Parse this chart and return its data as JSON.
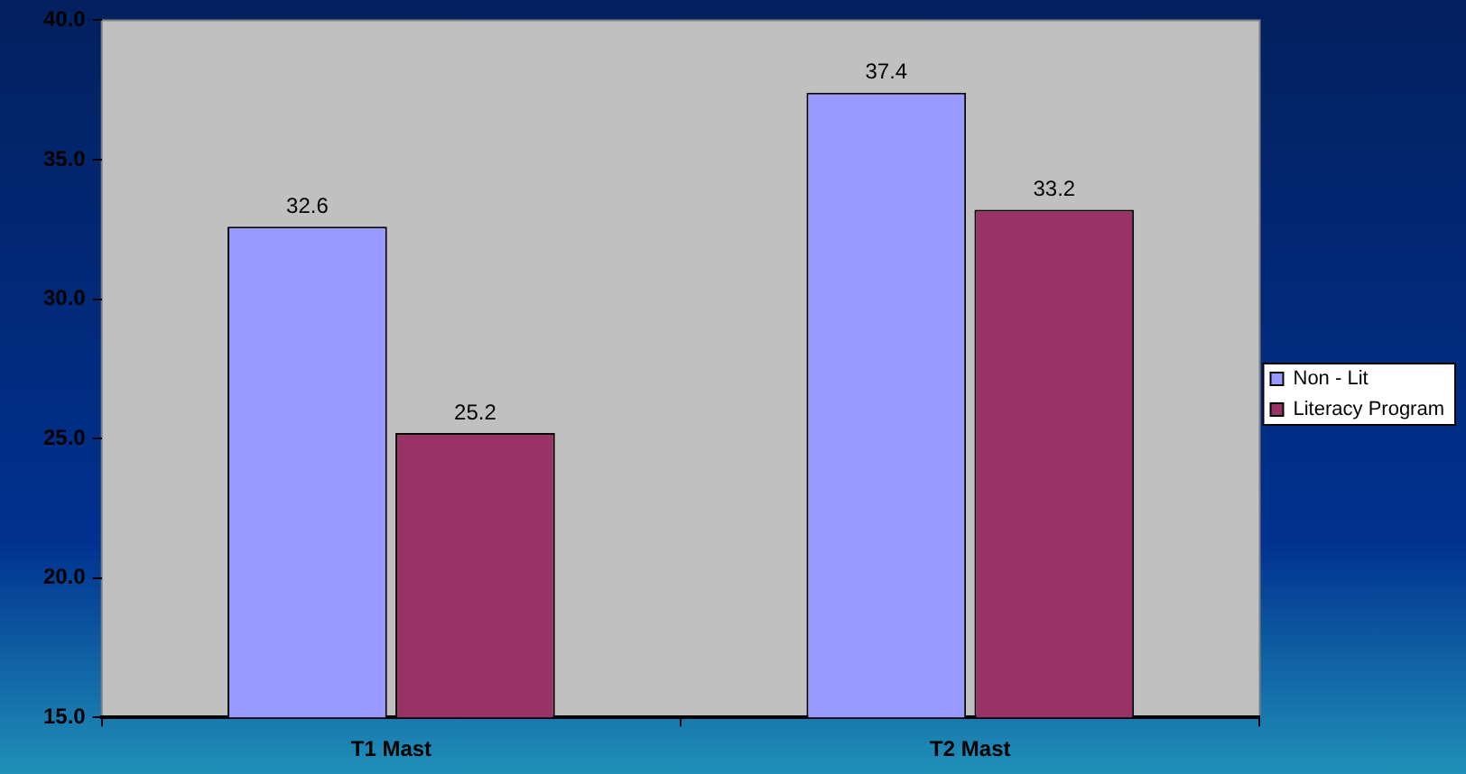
{
  "chart_data": {
    "type": "bar",
    "categories": [
      "T1 Mast",
      "T2 Mast"
    ],
    "series": [
      {
        "name": "Non - Lit",
        "color": "#9999ff",
        "values": [
          32.6,
          37.4
        ]
      },
      {
        "name": "Literacy Program",
        "color": "#993366",
        "values": [
          25.2,
          33.2
        ]
      }
    ],
    "ylim": [
      15,
      40
    ],
    "yticks": [
      {
        "value": 15,
        "label": "15.0"
      },
      {
        "value": 20,
        "label": "20.0"
      },
      {
        "value": 25,
        "label": "25.0"
      },
      {
        "value": 30,
        "label": "30.0"
      },
      {
        "value": 35,
        "label": "35.0"
      },
      {
        "value": 40,
        "label": "40.0"
      }
    ],
    "grid": false,
    "legend": "right",
    "data_labels": true
  }
}
